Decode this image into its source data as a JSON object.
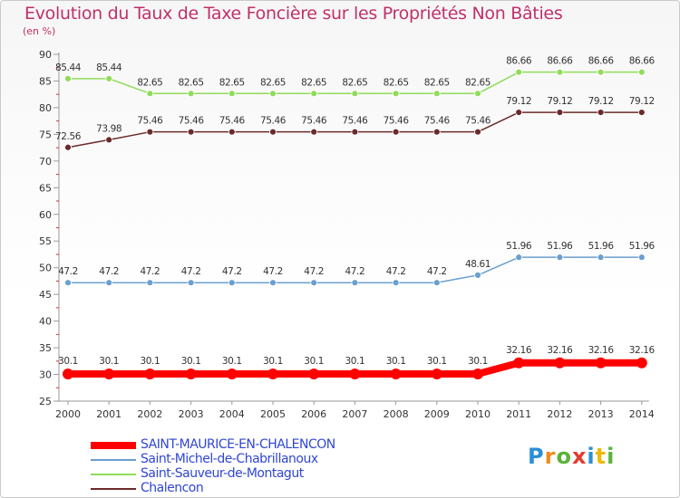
{
  "title": "Evolution du Taux de Taxe Foncière sur les Propriétés Non Bâties",
  "unit_label": "(en %)",
  "logo_text": "Proxiti",
  "chart_data": {
    "type": "line",
    "title": "Evolution du Taux de Taxe Foncière sur les Propriétés Non Bâties",
    "ylabel": "(en %)",
    "xlabel": "",
    "ylim": [
      25,
      90
    ],
    "yticks": [
      25,
      30,
      35,
      40,
      45,
      50,
      55,
      60,
      65,
      70,
      75,
      80,
      85,
      90
    ],
    "grid": false,
    "legend_position": "bottom-left",
    "categories": [
      "2000",
      "2001",
      "2002",
      "2003",
      "2004",
      "2005",
      "2006",
      "2007",
      "2008",
      "2009",
      "2010",
      "2011",
      "2012",
      "2013",
      "2014"
    ],
    "series": [
      {
        "name": "SAINT-MAURICE-EN-CHALENCON",
        "color": "#ff0000",
        "values": [
          30.1,
          30.1,
          30.1,
          30.1,
          30.1,
          30.1,
          30.1,
          30.1,
          30.1,
          30.1,
          30.1,
          32.16,
          32.16,
          32.16,
          32.16
        ],
        "labels": [
          "30.1",
          "30.1",
          "30.1",
          "30.1",
          "30.1",
          "30.1",
          "30.1",
          "30.1",
          "30.1",
          "30.1",
          "30.1",
          "32.16",
          "32.16",
          "32.16",
          "32.16"
        ]
      },
      {
        "name": "Saint-Michel-de-Chabrillanoux",
        "color": "#6a9fcf",
        "values": [
          47.2,
          47.2,
          47.2,
          47.2,
          47.2,
          47.2,
          47.2,
          47.2,
          47.2,
          47.2,
          48.61,
          51.96,
          51.96,
          51.96,
          51.96
        ],
        "labels": [
          "47.2",
          "47.2",
          "47.2",
          "47.2",
          "47.2",
          "47.2",
          "47.2",
          "47.2",
          "47.2",
          "47.2",
          "48.61",
          "51.96",
          "51.96",
          "51.96",
          "51.96"
        ]
      },
      {
        "name": "Saint-Sauveur-de-Montagut",
        "color": "#90dc5a",
        "values": [
          85.44,
          85.44,
          82.65,
          82.65,
          82.65,
          82.65,
          82.65,
          82.65,
          82.65,
          82.65,
          82.65,
          86.66,
          86.66,
          86.66,
          86.66
        ],
        "labels": [
          "85.44",
          "85.44",
          "82.65",
          "82.65",
          "82.65",
          "82.65",
          "82.65",
          "82.65",
          "82.65",
          "82.65",
          "82.65",
          "86.66",
          "86.66",
          "86.66",
          "86.66"
        ]
      },
      {
        "name": "Chalencon",
        "color": "#6b2a2a",
        "values": [
          72.56,
          73.98,
          75.46,
          75.46,
          75.46,
          75.46,
          75.46,
          75.46,
          75.46,
          75.46,
          75.46,
          79.12,
          79.12,
          79.12,
          79.12
        ],
        "labels": [
          "72.56",
          "73.98",
          "75.46",
          "75.46",
          "75.46",
          "75.46",
          "75.46",
          "75.46",
          "75.46",
          "75.46",
          "75.46",
          "79.12",
          "79.12",
          "79.12",
          "79.12"
        ]
      }
    ]
  }
}
